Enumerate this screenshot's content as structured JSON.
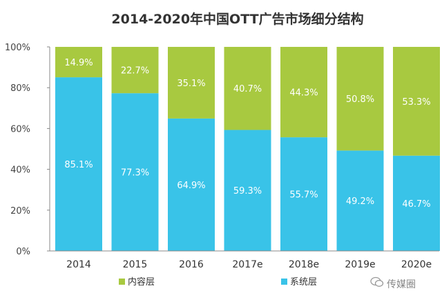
{
  "chart_data": {
    "type": "bar",
    "stacked": true,
    "title": "2014-2020年中国OTT广告市场细分结构",
    "categories": [
      "2014",
      "2015",
      "2016",
      "2017e",
      "2018e",
      "2019e",
      "2020e"
    ],
    "series": [
      {
        "name": "系统层",
        "values": [
          85.1,
          77.3,
          64.9,
          59.3,
          55.7,
          49.2,
          46.7
        ],
        "labels": [
          "85.1%",
          "77.3%",
          "64.9%",
          "59.3%",
          "55.7%",
          "49.2%",
          "46.7%"
        ]
      },
      {
        "name": "内容层",
        "values": [
          14.9,
          22.7,
          35.1,
          40.7,
          44.3,
          50.8,
          53.3
        ],
        "labels": [
          "14.9%",
          "22.7%",
          "35.1%",
          "40.7%",
          "44.3%",
          "50.8%",
          "53.3%"
        ]
      }
    ],
    "ylim": [
      0,
      100
    ],
    "yticks": [
      "0%",
      "20%",
      "40%",
      "60%",
      "80%",
      "100%"
    ],
    "grid": false,
    "legend_position": "bottom",
    "legend_order": [
      "内容层",
      "系统层"
    ],
    "colors": {
      "系统层": "#39c3e8",
      "内容层": "#a8c940"
    }
  },
  "watermark": {
    "text": "传媒圈",
    "icon": "wechat-bubble-icon"
  }
}
